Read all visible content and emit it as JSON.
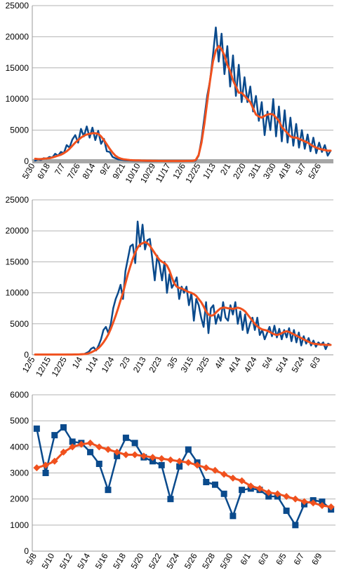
{
  "colors": {
    "actual": "#0a4a8c",
    "average": "#f0511e",
    "grid": "#b3b3b3",
    "axis": "#999999",
    "band": "#a6a6a6"
  },
  "chart_data": [
    {
      "type": "line",
      "title": "",
      "xlabel": "",
      "ylabel": "",
      "ylim": [
        0,
        25000
      ],
      "yticks": [
        0,
        5000,
        10000,
        15000,
        20000,
        25000
      ],
      "grid": true,
      "xtick_labels": [
        "5/30",
        "6/18",
        "7/7",
        "7/26",
        "8/14",
        "9/2",
        "9/21",
        "10/10",
        "10/29",
        "11/17",
        "12/6",
        "12/25",
        "1/13",
        "2/1",
        "2/20",
        "3/11",
        "3/30",
        "4/18",
        "5/7",
        "5/26"
      ],
      "series": [
        {
          "key": "daily",
          "color": "#0a4a8c",
          "values": [
            100,
            300,
            200,
            500,
            400,
            700,
            600,
            1200,
            900,
            1500,
            1300,
            2600,
            2200,
            3500,
            4200,
            3000,
            5200,
            4000,
            5600,
            3800,
            5400,
            3400,
            4900,
            2800,
            3600,
            1600,
            1500,
            700,
            500,
            300,
            250,
            180,
            150,
            120,
            100,
            90,
            80,
            70,
            60,
            50,
            50,
            45,
            40,
            40,
            40,
            40,
            40,
            40,
            40,
            40,
            40,
            40,
            40,
            45,
            50,
            60,
            100,
            900,
            3500,
            7000,
            10500,
            13000,
            17000,
            21500,
            16000,
            20500,
            14000,
            18500,
            12000,
            17000,
            10500,
            15500,
            9500,
            13500,
            9500,
            12000,
            8000,
            10500,
            6500,
            9500,
            4200,
            8000,
            5000,
            10000,
            4000,
            8800,
            3200,
            8200,
            3000,
            7000,
            2500,
            6000,
            2200,
            5000,
            2000,
            4300,
            1600,
            3800,
            1300,
            3000,
            1500,
            2600,
            900,
            1700
          ]
        },
        {
          "key": "avg",
          "color": "#f0511e",
          "values": [
            400,
            350,
            350,
            400,
            450,
            500,
            600,
            750,
            900,
            1050,
            1300,
            1600,
            2000,
            2500,
            3000,
            3400,
            3800,
            4100,
            4300,
            4400,
            4500,
            4500,
            4400,
            4000,
            3400,
            2700,
            2000,
            1400,
            900,
            600,
            400,
            300,
            250,
            200,
            170,
            150,
            130,
            110,
            100,
            90,
            80,
            70,
            65,
            60,
            55,
            50,
            50,
            50,
            50,
            50,
            50,
            50,
            50,
            55,
            60,
            70,
            200,
            1000,
            3000,
            6000,
            9500,
            13000,
            16000,
            17800,
            18500,
            18000,
            17000,
            15500,
            14500,
            13000,
            12000,
            11000,
            11000,
            10500,
            10000,
            9500,
            8500,
            7500,
            7200,
            7000,
            7300,
            7500,
            7600,
            7500,
            7000,
            6500,
            5500,
            5000,
            4500,
            4000,
            3800,
            3800,
            3600,
            3400,
            3200,
            3000,
            2700,
            2400,
            2200,
            2000,
            1900,
            1800,
            1700,
            1700
          ]
        }
      ]
    },
    {
      "type": "line",
      "title": "",
      "xlabel": "",
      "ylabel": "",
      "ylim": [
        0,
        25000
      ],
      "yticks": [
        0,
        5000,
        10000,
        15000,
        20000,
        25000
      ],
      "grid": true,
      "xtick_labels": [
        "12/5",
        "12/15",
        "12/25",
        "1/4",
        "1/14",
        "1/24",
        "2/3",
        "2/13",
        "2/23",
        "3/5",
        "3/15",
        "3/25",
        "4/4",
        "4/14",
        "4/24",
        "5/4",
        "5/14",
        "5/24",
        "6/3"
      ],
      "series": [
        {
          "key": "daily",
          "color": "#0a4a8c",
          "values": [
            30,
            30,
            30,
            30,
            30,
            30,
            30,
            30,
            30,
            30,
            30,
            30,
            30,
            40,
            40,
            40,
            50,
            60,
            70,
            100,
            100,
            300,
            500,
            1000,
            1200,
            700,
            1500,
            2500,
            4000,
            4500,
            3500,
            5000,
            7500,
            9000,
            10000,
            11300,
            9000,
            13500,
            15500,
            17500,
            17800,
            14800,
            21500,
            17500,
            21000,
            17000,
            18500,
            18700,
            15500,
            12000,
            16000,
            14500,
            12000,
            15000,
            10000,
            13000,
            10800,
            11500,
            12500,
            9000,
            11000,
            10000,
            11000,
            8000,
            10000,
            5500,
            9000,
            8000,
            6000,
            4500,
            8500,
            3500,
            7500,
            8000,
            5000,
            6500,
            5500,
            8500,
            6000,
            5500,
            8000,
            6500,
            8500,
            5000,
            7000,
            4000,
            6500,
            3500,
            5000,
            6000,
            4000,
            6000,
            3200,
            4000,
            2500,
            3500,
            4500,
            3000,
            4700,
            2800,
            4200,
            2500,
            4000,
            2800,
            4300,
            2200,
            4000,
            2000,
            3600,
            1500,
            3000,
            1800,
            2700,
            1500,
            2300,
            1300,
            2000,
            1600,
            2000,
            900,
            1800,
            1600
          ]
        },
        {
          "key": "avg",
          "color": "#f0511e",
          "values": [
            50,
            50,
            50,
            50,
            50,
            50,
            50,
            50,
            50,
            50,
            50,
            50,
            50,
            50,
            50,
            50,
            55,
            60,
            70,
            90,
            110,
            150,
            250,
            400,
            600,
            800,
            1100,
            1500,
            2000,
            2600,
            3300,
            4200,
            5200,
            6300,
            7500,
            8800,
            10000,
            11500,
            13000,
            14300,
            15500,
            16500,
            17300,
            17800,
            18000,
            18200,
            18000,
            17600,
            17000,
            16400,
            15800,
            15300,
            15000,
            14800,
            14400,
            13600,
            12500,
            11500,
            11000,
            10800,
            10700,
            10500,
            10300,
            10100,
            10000,
            9800,
            9500,
            9000,
            8500,
            7800,
            7000,
            6500,
            6300,
            6400,
            6800,
            7200,
            7500,
            7600,
            7600,
            7500,
            7500,
            7400,
            7500,
            7600,
            7500,
            7300,
            7000,
            6500,
            6000,
            5500,
            5000,
            4600,
            4300,
            4100,
            4000,
            3900,
            3700,
            3500,
            3300,
            3200,
            3300,
            3500,
            3700,
            3800,
            3700,
            3500,
            3300,
            3100,
            2900,
            2700,
            2500,
            2300,
            2100,
            1900,
            1800,
            1750,
            1700,
            1650,
            1650,
            1600,
            1600,
            1600
          ]
        }
      ]
    },
    {
      "type": "line",
      "title": "",
      "xlabel": "",
      "ylabel": "",
      "ylim": [
        0,
        6000
      ],
      "yticks": [
        0,
        1000,
        2000,
        3000,
        4000,
        5000,
        6000
      ],
      "grid": true,
      "xtick_labels": [
        "5/8",
        "5/10",
        "5/12",
        "5/14",
        "5/16",
        "5/18",
        "5/20",
        "5/22",
        "5/24",
        "5/26",
        "5/28",
        "5/30",
        "6/1",
        "6/3",
        "6/5",
        "6/7",
        "6/9"
      ],
      "categories": [
        "5/8",
        "5/9",
        "5/10",
        "5/11",
        "5/12",
        "5/13",
        "5/14",
        "5/15",
        "5/16",
        "5/17",
        "5/18",
        "5/19",
        "5/20",
        "5/21",
        "5/22",
        "5/23",
        "5/24",
        "5/25",
        "5/26",
        "5/27",
        "5/28",
        "5/29",
        "5/30",
        "5/31",
        "6/1",
        "6/2",
        "6/3",
        "6/4",
        "6/5",
        "6/6",
        "6/7",
        "6/8",
        "6/9",
        "6/10"
      ],
      "series": [
        {
          "key": "daily",
          "color": "#0a4a8c",
          "marker": "square",
          "values": [
            4700,
            3000,
            4450,
            4750,
            4200,
            4150,
            3800,
            3350,
            2350,
            3650,
            4350,
            4150,
            3600,
            3450,
            3300,
            2000,
            3250,
            3900,
            3400,
            2650,
            2550,
            2200,
            1350,
            2350,
            2400,
            2350,
            2100,
            2100,
            1550,
            1000,
            1800,
            1950,
            1900,
            1600
          ]
        },
        {
          "key": "avg",
          "color": "#f0511e",
          "marker": "diamond",
          "values": [
            3200,
            3300,
            3450,
            3800,
            4000,
            4100,
            4150,
            4000,
            3900,
            3800,
            3700,
            3700,
            3650,
            3600,
            3550,
            3500,
            3450,
            3400,
            3300,
            3200,
            3100,
            2950,
            2800,
            2700,
            2500,
            2400,
            2250,
            2200,
            2100,
            2000,
            1900,
            1850,
            1750,
            1700
          ]
        }
      ]
    }
  ]
}
